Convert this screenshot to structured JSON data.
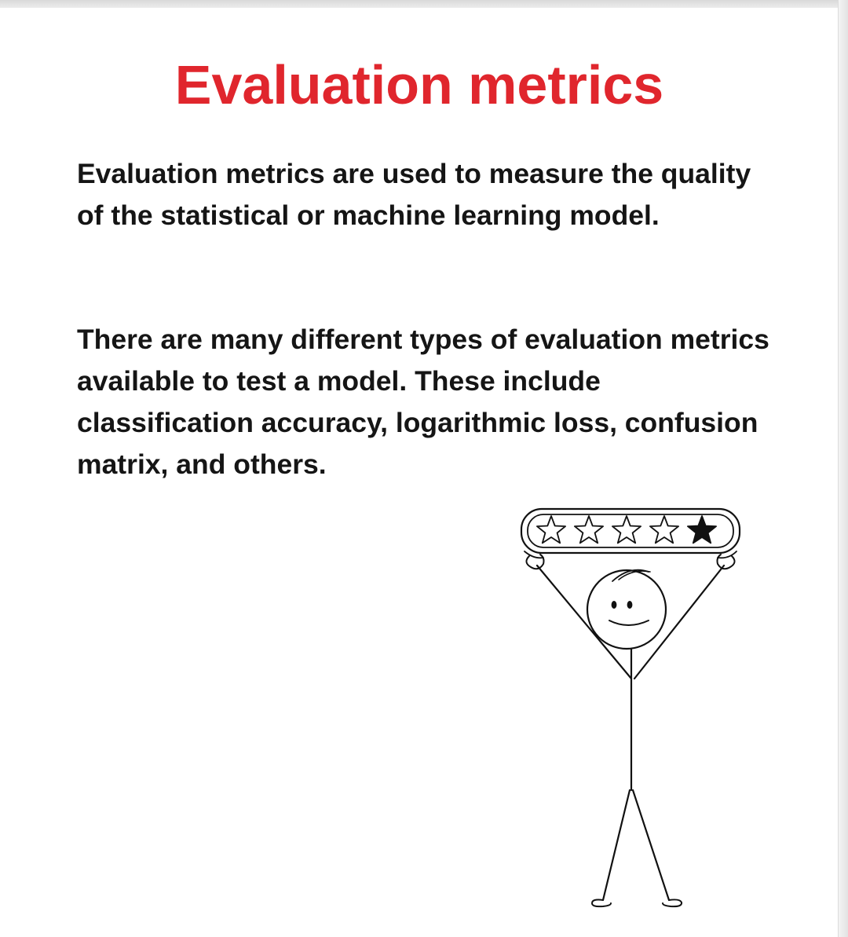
{
  "title": "Evaluation metrics",
  "paragraphs": [
    "Evaluation metrics are used to measure the quality of the statistical or machine learning model.",
    "There are many different types of evaluation metrics available to test a model. These include classification accuracy, logarithmic loss, confusion matrix, and others."
  ],
  "illustration": {
    "rating": {
      "filled_stars": 1,
      "total_stars": 5
    }
  },
  "colors": {
    "title": "#e0262d",
    "text": "#151515",
    "background": "#ffffff"
  }
}
